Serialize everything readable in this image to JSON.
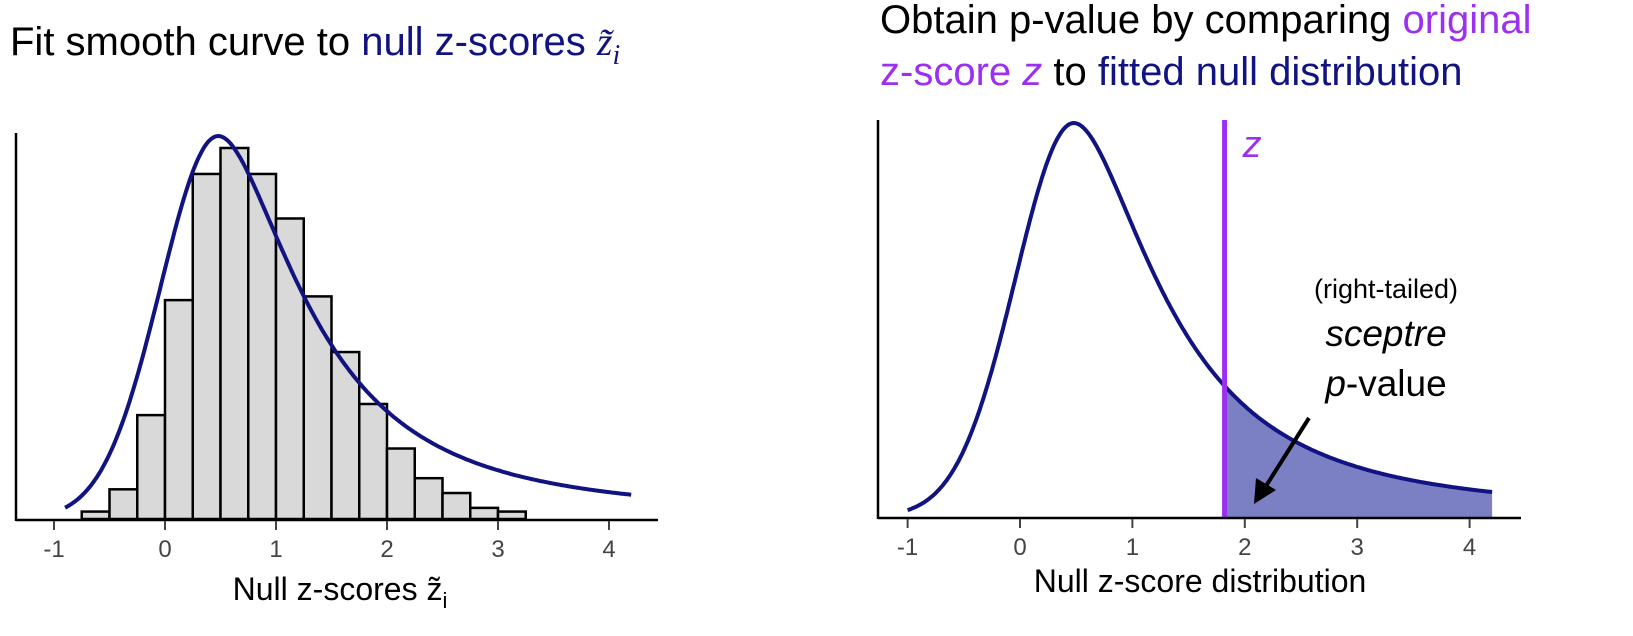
{
  "left_panel": {
    "title_prefix": "Fit smooth curve to",
    "title_highlight": "null z-scores",
    "title_symbol": "z̃",
    "title_subscript": "i",
    "xlabel": "Null z-scores z̃",
    "xlabel_subscript": "i"
  },
  "right_panel": {
    "title_line1_prefix": "Obtain p-value by comparing",
    "title_line1_highlight": "original",
    "title_line2_highlight": "z-score",
    "title_line2_symbol": "z",
    "title_line2_mid": "to",
    "title_line2_end": "fitted null distribution",
    "z_marker_label": "z",
    "annotation_line1": "(right-tailed)",
    "annotation_line2": "sceptre",
    "annotation_line3_italic": "p",
    "annotation_line3_rest": "-value",
    "xlabel": "Null z-score distribution"
  },
  "colors": {
    "curve": "#111380",
    "highlight_purple": "#9b30f0",
    "bar_fill": "#d9d9d9",
    "bar_stroke": "#000000",
    "tail_fill": "#7b7fc4"
  },
  "chart_data": [
    {
      "type": "bar",
      "subtype": "histogram_with_density_fit",
      "xlabel": "Null z-scores z̃i",
      "x_ticks": [
        -1,
        0,
        1,
        2,
        3,
        4
      ],
      "xlim": [
        -1.3,
        4.5
      ],
      "ylim": [
        0,
        1.0
      ],
      "bin_width": 0.25,
      "bin_starts": [
        -0.75,
        -0.5,
        -0.25,
        0.0,
        0.25,
        0.5,
        0.75,
        1.0,
        1.25,
        1.5,
        1.75,
        2.0,
        2.25,
        2.5,
        2.75,
        3.0
      ],
      "values": [
        0.02,
        0.08,
        0.28,
        0.59,
        0.93,
        1.0,
        0.93,
        0.81,
        0.6,
        0.45,
        0.31,
        0.19,
        0.11,
        0.07,
        0.03,
        0.02
      ],
      "fitted_curve": {
        "name": "fitted null distribution",
        "mode": 0.48,
        "x_range": [
          -0.9,
          4.2
        ]
      }
    },
    {
      "type": "line",
      "subtype": "density_with_tail_area",
      "xlabel": "Null z-score distribution",
      "x_ticks": [
        -1,
        0,
        1,
        2,
        3,
        4
      ],
      "xlim": [
        -1.3,
        4.5
      ],
      "ylim": [
        0,
        1.0
      ],
      "curve": {
        "name": "fitted null distribution",
        "mode": 0.48,
        "x_range": [
          -1.0,
          4.2
        ]
      },
      "observed_z": 1.82,
      "shaded_region": "right tail beyond z"
    }
  ]
}
